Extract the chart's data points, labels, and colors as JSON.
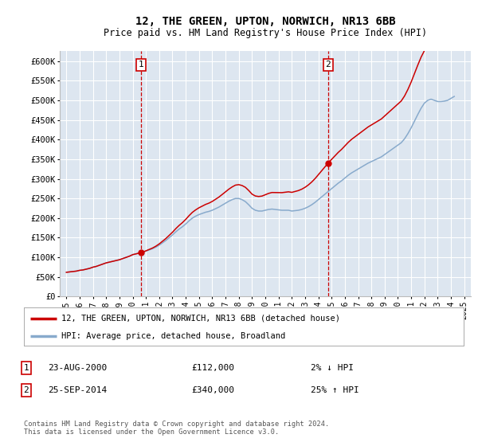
{
  "title": "12, THE GREEN, UPTON, NORWICH, NR13 6BB",
  "subtitle": "Price paid vs. HM Land Registry's House Price Index (HPI)",
  "ylim": [
    0,
    625000
  ],
  "yticks": [
    0,
    50000,
    100000,
    150000,
    200000,
    250000,
    300000,
    350000,
    400000,
    450000,
    500000,
    550000,
    600000
  ],
  "ytick_labels": [
    "£0",
    "£50K",
    "£100K",
    "£150K",
    "£200K",
    "£250K",
    "£300K",
    "£350K",
    "£400K",
    "£450K",
    "£500K",
    "£550K",
    "£600K"
  ],
  "xlim": [
    1994.5,
    2025.5
  ],
  "plot_bg": "#dde6f0",
  "grid_color": "#ffffff",
  "line1_color": "#cc0000",
  "line2_color": "#88aacc",
  "vline_color": "#cc0000",
  "sale1_x": 2000.646,
  "sale2_x": 2014.731,
  "sale1_price": 112000,
  "sale2_price": 340000,
  "sale1_date": "23-AUG-2000",
  "sale1_price_str": "£112,000",
  "sale1_hpi": "2% ↓ HPI",
  "sale2_date": "25-SEP-2014",
  "sale2_price_str": "£340,000",
  "sale2_hpi": "25% ↑ HPI",
  "legend_line1": "12, THE GREEN, UPTON, NORWICH, NR13 6BB (detached house)",
  "legend_line2": "HPI: Average price, detached house, Broadland",
  "footer": "Contains HM Land Registry data © Crown copyright and database right 2024.\nThis data is licensed under the Open Government Licence v3.0.",
  "hpi_years": [
    1995,
    1995.25,
    1995.5,
    1995.75,
    1996,
    1996.25,
    1996.5,
    1996.75,
    1997,
    1997.25,
    1997.5,
    1997.75,
    1998,
    1998.25,
    1998.5,
    1998.75,
    1999,
    1999.25,
    1999.5,
    1999.75,
    2000,
    2000.25,
    2000.5,
    2000.75,
    2001,
    2001.25,
    2001.5,
    2001.75,
    2002,
    2002.25,
    2002.5,
    2002.75,
    2003,
    2003.25,
    2003.5,
    2003.75,
    2004,
    2004.25,
    2004.5,
    2004.75,
    2005,
    2005.25,
    2005.5,
    2005.75,
    2006,
    2006.25,
    2006.5,
    2006.75,
    2007,
    2007.25,
    2007.5,
    2007.75,
    2008,
    2008.25,
    2008.5,
    2008.75,
    2009,
    2009.25,
    2009.5,
    2009.75,
    2010,
    2010.25,
    2010.5,
    2010.75,
    2011,
    2011.25,
    2011.5,
    2011.75,
    2012,
    2012.25,
    2012.5,
    2012.75,
    2013,
    2013.25,
    2013.5,
    2013.75,
    2014,
    2014.25,
    2014.5,
    2014.75,
    2015,
    2015.25,
    2015.5,
    2015.75,
    2016,
    2016.25,
    2016.5,
    2016.75,
    2017,
    2017.25,
    2017.5,
    2017.75,
    2018,
    2018.25,
    2018.5,
    2018.75,
    2019,
    2019.25,
    2019.5,
    2019.75,
    2020,
    2020.25,
    2020.5,
    2020.75,
    2021,
    2021.25,
    2021.5,
    2021.75,
    2022,
    2022.25,
    2022.5,
    2022.75,
    2023,
    2023.25,
    2023.5,
    2023.75,
    2024,
    2024.25
  ],
  "hpi_values": [
    62000,
    63000,
    64000,
    65000,
    67000,
    68000,
    70000,
    72000,
    75000,
    77000,
    80000,
    83000,
    86000,
    88000,
    90000,
    92000,
    94000,
    97000,
    100000,
    103000,
    107000,
    109000,
    111000,
    113000,
    116000,
    119000,
    122000,
    126000,
    131000,
    137000,
    143000,
    150000,
    157000,
    165000,
    172000,
    178000,
    185000,
    193000,
    200000,
    205000,
    209000,
    212000,
    215000,
    217000,
    220000,
    224000,
    228000,
    233000,
    238000,
    243000,
    247000,
    250000,
    250000,
    247000,
    242000,
    234000,
    225000,
    220000,
    218000,
    218000,
    220000,
    222000,
    223000,
    222000,
    221000,
    220000,
    220000,
    220000,
    218000,
    219000,
    220000,
    222000,
    225000,
    229000,
    234000,
    240000,
    247000,
    254000,
    261000,
    268000,
    275000,
    282000,
    289000,
    295000,
    302000,
    309000,
    315000,
    320000,
    325000,
    330000,
    335000,
    340000,
    344000,
    348000,
    352000,
    356000,
    362000,
    368000,
    374000,
    380000,
    386000,
    392000,
    402000,
    415000,
    430000,
    447000,
    464000,
    480000,
    493000,
    500000,
    503000,
    500000,
    497000,
    497000,
    498000,
    500000,
    505000,
    510000
  ],
  "xticks": [
    1995,
    1996,
    1997,
    1998,
    1999,
    2000,
    2001,
    2002,
    2003,
    2004,
    2005,
    2006,
    2007,
    2008,
    2009,
    2010,
    2011,
    2012,
    2013,
    2014,
    2015,
    2016,
    2017,
    2018,
    2019,
    2020,
    2021,
    2022,
    2023,
    2024,
    2025
  ]
}
